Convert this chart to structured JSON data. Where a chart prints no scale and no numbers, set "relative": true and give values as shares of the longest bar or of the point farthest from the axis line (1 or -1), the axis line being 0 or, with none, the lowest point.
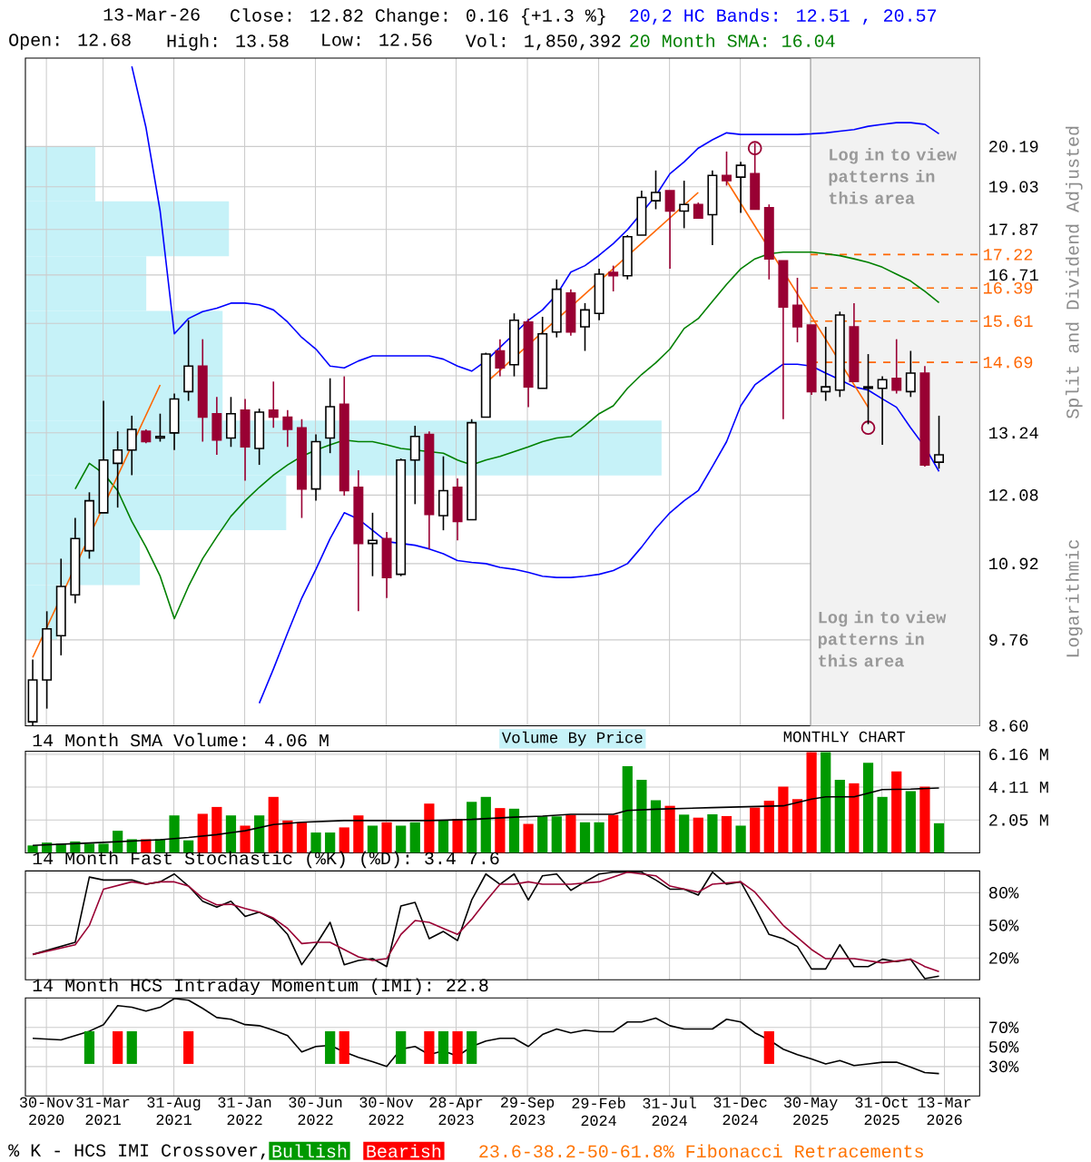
{
  "chart_data": [
    {
      "type": "candlestick",
      "x": [
        "2020-11",
        "2020-12",
        "2021-01",
        "2021-02",
        "2021-03",
        "2021-04",
        "2021-05",
        "2021-06",
        "2021-07",
        "2021-08",
        "2021-09",
        "2021-10",
        "2021-11",
        "2021-12",
        "2022-01",
        "2022-02",
        "2022-03",
        "2022-04",
        "2022-05",
        "2022-06",
        "2022-07",
        "2022-08",
        "2022-09",
        "2022-10",
        "2022-11",
        "2022-12",
        "2023-01",
        "2023-02",
        "2023-03",
        "2023-04",
        "2023-05",
        "2023-06",
        "2023-07",
        "2023-08",
        "2023-09",
        "2023-10",
        "2023-11",
        "2023-12",
        "2024-01",
        "2024-02",
        "2024-03",
        "2024-04",
        "2024-05",
        "2024-06",
        "2024-07",
        "2024-08",
        "2024-09",
        "2024-10",
        "2024-11",
        "2024-12",
        "2025-01",
        "2025-02",
        "2025-03",
        "2025-04",
        "2025-05",
        "2025-06",
        "2025-07",
        "2025-08",
        "2025-09",
        "2025-10",
        "2025-11",
        "2025-12",
        "2026-01",
        "2026-02",
        "2026-03"
      ],
      "ohlc": [
        [
          8.65,
          9.48,
          8.6,
          9.2
        ],
        [
          9.2,
          10.18,
          8.82,
          9.92
        ],
        [
          9.82,
          11.0,
          9.54,
          10.56
        ],
        [
          10.43,
          11.68,
          10.3,
          11.33
        ],
        [
          11.13,
          12.13,
          11.0,
          11.98
        ],
        [
          11.77,
          13.88,
          11.77,
          12.72
        ],
        [
          12.66,
          13.27,
          11.86,
          12.91
        ],
        [
          12.91,
          13.58,
          12.44,
          13.31
        ],
        [
          13.27,
          13.31,
          13.04,
          13.07
        ],
        [
          13.14,
          13.62,
          13.07,
          13.17
        ],
        [
          13.24,
          14.03,
          12.91,
          13.92
        ],
        [
          14.07,
          15.63,
          13.88,
          14.61
        ],
        [
          14.61,
          15.2,
          13.07,
          13.55
        ],
        [
          13.62,
          13.96,
          12.82,
          13.1
        ],
        [
          13.14,
          13.96,
          12.97,
          13.62
        ],
        [
          13.69,
          13.92,
          12.34,
          12.97
        ],
        [
          12.94,
          13.72,
          12.63,
          13.65
        ],
        [
          13.69,
          14.28,
          13.34,
          13.55
        ],
        [
          13.55,
          13.69,
          12.97,
          13.31
        ],
        [
          13.34,
          13.51,
          11.68,
          12.19
        ],
        [
          12.19,
          13.21,
          11.98,
          13.07
        ],
        [
          13.14,
          14.35,
          12.85,
          13.76
        ],
        [
          13.81,
          14.39,
          12.07,
          12.16
        ],
        [
          12.22,
          12.53,
          10.18,
          11.25
        ],
        [
          11.25,
          11.77,
          10.72,
          11.3
        ],
        [
          11.33,
          11.44,
          10.38,
          10.7
        ],
        [
          10.75,
          12.75,
          10.72,
          12.72
        ],
        [
          12.72,
          13.38,
          11.92,
          13.17
        ],
        [
          13.21,
          13.27,
          11.16,
          11.74
        ],
        [
          11.72,
          12.79,
          11.47,
          12.16
        ],
        [
          12.22,
          12.38,
          11.3,
          11.62
        ],
        [
          11.65,
          13.51,
          11.65,
          13.44
        ],
        [
          13.55,
          14.9,
          13.55,
          14.87
        ],
        [
          14.94,
          15.2,
          14.39,
          14.57
        ],
        [
          14.64,
          15.79,
          14.39,
          15.63
        ],
        [
          15.59,
          15.67,
          13.75,
          14.17
        ],
        [
          14.14,
          15.71,
          14.14,
          15.32
        ],
        [
          15.36,
          16.6,
          15.24,
          16.36
        ],
        [
          16.27,
          16.36,
          15.28,
          15.36
        ],
        [
          15.48,
          16.03,
          14.94,
          15.87
        ],
        [
          15.79,
          16.86,
          15.63,
          16.73
        ],
        [
          16.77,
          16.94,
          16.31,
          16.69
        ],
        [
          16.69,
          17.72,
          16.6,
          17.68
        ],
        [
          17.72,
          18.92,
          17.72,
          18.73
        ],
        [
          18.64,
          19.49,
          18.41,
          18.87
        ],
        [
          18.92,
          18.92,
          16.86,
          18.36
        ],
        [
          18.36,
          19.2,
          17.9,
          18.54
        ],
        [
          18.54,
          18.59,
          18.17,
          18.17
        ],
        [
          18.26,
          19.49,
          17.46,
          19.35
        ],
        [
          19.35,
          20.04,
          19.06,
          19.2
        ],
        [
          19.3,
          19.74,
          18.31,
          19.64
        ],
        [
          19.4,
          20.29,
          18.41,
          18.41
        ],
        [
          18.45,
          18.54,
          16.6,
          17.11
        ],
        [
          17.06,
          17.06,
          13.51,
          15.94
        ],
        [
          15.98,
          16.64,
          15.13,
          15.48
        ],
        [
          15.52,
          15.52,
          14.0,
          14.07
        ],
        [
          14.07,
          15.48,
          13.88,
          14.17
        ],
        [
          14.1,
          15.83,
          13.96,
          15.75
        ],
        [
          15.48,
          16.03,
          14.28,
          14.28
        ],
        [
          14.14,
          14.87,
          13.41,
          14.17
        ],
        [
          14.14,
          14.39,
          13.01,
          14.32
        ],
        [
          14.35,
          15.2,
          14.03,
          14.1
        ],
        [
          14.07,
          14.94,
          13.96,
          14.46
        ],
        [
          14.46,
          14.61,
          12.6,
          12.63
        ],
        [
          12.68,
          13.58,
          12.56,
          12.82
        ]
      ],
      "colors": [
        "#ffffff",
        "#ffffff",
        "#ffffff",
        "#ffffff",
        "#ffffff",
        "#ffffff",
        "#ffffff",
        "#ffffff",
        "#990033",
        "#ffffff",
        "#ffffff",
        "#ffffff",
        "#990033",
        "#990033",
        "#ffffff",
        "#990033",
        "#ffffff",
        "#990033",
        "#990033",
        "#990033",
        "#ffffff",
        "#ffffff",
        "#990033",
        "#990033",
        "#ffffff",
        "#990033",
        "#ffffff",
        "#ffffff",
        "#990033",
        "#ffffff",
        "#990033",
        "#ffffff",
        "#ffffff",
        "#990033",
        "#ffffff",
        "#990033",
        "#ffffff",
        "#ffffff",
        "#990033",
        "#ffffff",
        "#ffffff",
        "#990033",
        "#ffffff",
        "#ffffff",
        "#ffffff",
        "#990033",
        "#ffffff",
        "#990033",
        "#ffffff",
        "#990033",
        "#ffffff",
        "#990033",
        "#990033",
        "#990033",
        "#990033",
        "#990033",
        "#ffffff",
        "#ffffff",
        "#990033",
        "#ffffff",
        "#ffffff",
        "#990033",
        "#ffffff",
        "#990033",
        "#ffffff"
      ],
      "series": [
        {
          "type": "line",
          "name": "20,2 HC Bands: 12.51 , 20.57",
          "color": "#0000ff",
          "values": [
            null,
            null,
            null,
            null,
            null,
            null,
            null,
            22.72,
            20.76,
            18.36,
            15.32,
            15.67,
            15.83,
            15.91,
            16.03,
            16.03,
            15.99,
            15.87,
            15.59,
            15.24,
            14.98,
            14.61,
            14.57,
            14.72,
            14.83,
            14.83,
            14.83,
            14.83,
            14.83,
            14.76,
            14.61,
            14.5,
            14.72,
            15.02,
            15.32,
            15.63,
            15.87,
            16.23,
            16.78,
            16.94,
            17.2,
            17.5,
            17.86,
            18.31,
            18.78,
            19.4,
            19.74,
            20.14,
            20.39,
            20.6,
            20.55,
            20.55,
            20.55,
            20.55,
            20.55,
            20.57,
            20.6,
            20.65,
            20.7,
            20.8,
            20.86,
            20.91,
            20.91,
            20.86,
            20.57
          ]
        },
        {
          "type": "line",
          "color": "#0000ff",
          "values": [
            null,
            null,
            null,
            null,
            null,
            null,
            null,
            null,
            null,
            null,
            null,
            null,
            null,
            null,
            null,
            null,
            8.89,
            9.35,
            9.86,
            10.38,
            10.83,
            11.33,
            11.77,
            11.66,
            11.47,
            11.28,
            11.25,
            11.22,
            11.16,
            11.08,
            10.97,
            10.94,
            10.92,
            10.86,
            10.83,
            10.78,
            10.72,
            10.7,
            10.7,
            10.72,
            10.75,
            10.81,
            10.92,
            11.19,
            11.5,
            11.77,
            11.98,
            12.16,
            12.6,
            13.07,
            13.78,
            14.21,
            14.43,
            14.65,
            14.65,
            14.61,
            14.46,
            14.32,
            14.17,
            14.1,
            13.92,
            13.75,
            13.34,
            12.97,
            12.51
          ]
        },
        {
          "type": "line",
          "name": "20 Month SMA: 16.04",
          "color": "#008000",
          "values": [
            null,
            null,
            null,
            12.19,
            12.66,
            12.47,
            12.16,
            11.62,
            11.19,
            10.72,
            10.07,
            10.56,
            11.0,
            11.36,
            11.71,
            11.98,
            12.22,
            12.44,
            12.63,
            12.79,
            12.91,
            13.01,
            13.1,
            13.07,
            13.07,
            13.01,
            12.94,
            12.91,
            12.88,
            12.85,
            12.72,
            12.63,
            12.72,
            12.79,
            12.88,
            12.97,
            13.07,
            13.14,
            13.17,
            13.38,
            13.62,
            13.78,
            14.14,
            14.43,
            14.68,
            14.98,
            15.44,
            15.67,
            16.07,
            16.48,
            16.86,
            17.11,
            17.24,
            17.28,
            17.28,
            17.28,
            17.24,
            17.19,
            17.11,
            17.02,
            16.9,
            16.73,
            16.56,
            16.31,
            16.04
          ]
        },
        {
          "type": "line",
          "color": "#ff6600",
          "x": [
            "2020-11",
            "2021-08"
          ],
          "values": [
            9.51,
            14.21
          ]
        },
        {
          "type": "line",
          "color": "#ff6600",
          "x": [
            "2023-07",
            "2024-10"
          ],
          "values": [
            14.25,
            18.87
          ]
        },
        {
          "type": "line",
          "color": "#ff6600",
          "x": [
            "2024-12",
            "2025-10"
          ],
          "values": [
            19.2,
            13.75
          ]
        },
        {
          "type": "scatter",
          "marker": "circle",
          "color": "#990033",
          "x": [
            "2025-02",
            "2025-10"
          ],
          "values": [
            20.14,
            13.34
          ]
        }
      ],
      "xlim": [
        "2020-10-16",
        "2026-05-28"
      ],
      "xticks": [
        "2020-11-30",
        "2021-03-31",
        "2021-08-31",
        "2022-01-31",
        "2022-06-30",
        "2022-11-30",
        "2023-04-28",
        "2023-09-29",
        "2024-02-29",
        "2024-07-31",
        "2024-12-31",
        "2025-05-30",
        "2025-10-31",
        "2026-03-13"
      ],
      "ylim": [
        8.6,
        23.0
      ],
      "yticks": [
        {
          "value": 8.6,
          "label": "8.60"
        },
        9.76,
        10.92,
        12.08,
        13.24,
        {
          "value": 14.4,
          "label": null
        },
        {
          "value": 15.56,
          "label": null
        },
        16.71,
        17.87,
        19.03,
        20.19
      ],
      "log": true,
      "grid": true,
      "tick_labels": "y",
      "legend": "top right",
      "ylabel": "Split and Dividend Adjusted",
      "ref_lines": [
        {
          "axis": "y",
          "value": 17.22,
          "label": "17.22",
          "color": "#ff6600",
          "line_style": "dashed"
        },
        {
          "axis": "y",
          "value": 16.39,
          "label": "16.39",
          "color": "#ff6600",
          "line_style": "dashed"
        },
        {
          "axis": "y",
          "value": 15.61,
          "label": "15.61",
          "color": "#ff6600",
          "line_style": "dashed"
        },
        {
          "axis": "y",
          "value": 14.69,
          "label": "14.69",
          "color": "#ff6600",
          "line_style": "dashed"
        }
      ],
      "bands": [
        {
          "axis": "x",
          "from": "2025-05-30",
          "to": "2026-05-28",
          "color": "#f2f2f2",
          "label": "Log in to view patterns in this area"
        }
      ],
      "annotations": [
        "13-Mar-26",
        "Close: 12.82",
        "Change: 0.16 {+1.3 %}",
        "Open: 12.68",
        "High: 13.58",
        "Low: 12.56",
        "Vol: 1,850,392",
        "Log in to view patterns in this area",
        "Logarithmic",
        "MONTHLY CHART",
        "23.6-38.2-50-61.8% Fibonacci Retracements"
      ]
    },
    {
      "type": "bar",
      "orientation": "horizontal",
      "relative": true,
      "title": "Volume By Price",
      "color": "#c6f2f8",
      "categories": [
        null,
        null,
        null,
        null,
        null,
        null,
        null,
        null,
        null
      ],
      "values": [
        0.11,
        0.32,
        0.19,
        0.31,
        0.31,
        1,
        0.41,
        0.18,
        0.05
      ]
    },
    {
      "type": "bar",
      "title": "14 Month SMA Volume: 4.06 M",
      "x": [
        "2020-11",
        "2020-12",
        "2021-01",
        "2021-02",
        "2021-03",
        "2021-04",
        "2021-05",
        "2021-06",
        "2021-07",
        "2021-08",
        "2021-09",
        "2021-10",
        "2021-11",
        "2021-12",
        "2022-01",
        "2022-02",
        "2022-03",
        "2022-04",
        "2022-05",
        "2022-06",
        "2022-07",
        "2022-08",
        "2022-09",
        "2022-10",
        "2022-11",
        "2022-12",
        "2023-01",
        "2023-02",
        "2023-03",
        "2023-04",
        "2023-05",
        "2023-06",
        "2023-07",
        "2023-08",
        "2023-09",
        "2023-10",
        "2023-11",
        "2023-12",
        "2024-01",
        "2024-02",
        "2024-03",
        "2024-04",
        "2024-05",
        "2024-06",
        "2024-07",
        "2024-08",
        "2024-09",
        "2024-10",
        "2024-11",
        "2024-12",
        "2025-01",
        "2025-02",
        "2025-03",
        "2025-04",
        "2025-05",
        "2025-06",
        "2025-07",
        "2025-08",
        "2025-09",
        "2025-10",
        "2025-11",
        "2025-12",
        "2026-01",
        "2026-02",
        "2026-03"
      ],
      "series": [
        {
          "type": "bar",
          "values": [
            0.46,
            0.64,
            0.57,
            0.71,
            0.57,
            0.57,
            1.38,
            0.85,
            0.85,
            0.85,
            2.34,
            0.78,
            2.44,
            2.87,
            2.34,
            1.7,
            2.34,
            3.5,
            2.02,
            1.91,
            1.27,
            1.27,
            1.59,
            2.34,
            1.7,
            1.91,
            1.7,
            1.91,
            3.08,
            2.02,
            2.12,
            3.19,
            3.5,
            2.8,
            2.76,
            1.81,
            2.28,
            2.28,
            2.37,
            1.91,
            1.91,
            2.37,
            5.42,
            4.57,
            3.29,
            2.94,
            2.39,
            2.2,
            2.41,
            2.3,
            1.7,
            2.83,
            3.26,
            4.14,
            3.36,
            6.3,
            6.3,
            4.57,
            4.35,
            5.63,
            3.5,
            5.1,
            3.86,
            4.14,
            1.85
          ],
          "colors": [
            "#009900",
            "#009900",
            "#009900",
            "#009900",
            "#009900",
            "#009900",
            "#009900",
            "#009900",
            "#ff0000",
            "#009900",
            "#009900",
            "#009900",
            "#ff0000",
            "#ff0000",
            "#009900",
            "#ff0000",
            "#009900",
            "#ff0000",
            "#ff0000",
            "#ff0000",
            "#009900",
            "#009900",
            "#ff0000",
            "#ff0000",
            "#009900",
            "#ff0000",
            "#009900",
            "#009900",
            "#ff0000",
            "#009900",
            "#ff0000",
            "#009900",
            "#009900",
            "#ff0000",
            "#009900",
            "#ff0000",
            "#009900",
            "#009900",
            "#ff0000",
            "#009900",
            "#009900",
            "#ff0000",
            "#009900",
            "#009900",
            "#009900",
            "#ff0000",
            "#009900",
            "#ff0000",
            "#009900",
            "#ff0000",
            "#009900",
            "#ff0000",
            "#ff0000",
            "#ff0000",
            "#ff0000",
            "#ff0000",
            "#009900",
            "#009900",
            "#ff0000",
            "#009900",
            "#009900",
            "#ff0000",
            "#009900",
            "#ff0000",
            "#009900"
          ]
        },
        {
          "type": "line",
          "color": "#000000",
          "x": [
            "2020-11",
            "2021-03",
            "2021-08",
            "2021-10",
            "2021-12",
            "2022-02",
            "2022-04",
            "2022-06",
            "2022-09",
            "2022-12",
            "2023-03",
            "2023-06",
            "2023-09",
            "2023-11",
            "2024-01",
            "2024-04",
            "2024-05",
            "2024-07",
            "2024-11",
            "2025-04",
            "2025-06",
            "2025-07",
            "2025-09",
            "2025-11",
            "2026-01",
            "2026-03"
          ],
          "values": [
            0.46,
            0.61,
            0.82,
            0.96,
            1.14,
            1.38,
            1.77,
            1.91,
            2.02,
            2.02,
            2.02,
            2.09,
            2.23,
            2.3,
            2.41,
            2.41,
            2.65,
            2.73,
            2.83,
            2.94,
            3.36,
            3.5,
            3.5,
            3.96,
            3.99,
            4.06
          ]
        }
      ],
      "xlim": [
        "2020-10-16",
        "2026-05-28"
      ],
      "xticks": [
        "2020-11-30",
        "2021-03-31",
        "2021-08-31",
        "2022-01-31",
        "2022-06-30",
        "2022-11-30",
        "2023-04-28",
        "2023-09-29",
        "2024-02-29",
        "2024-07-31",
        "2024-12-31",
        "2025-05-30",
        "2025-10-31",
        "2026-03-13"
      ],
      "ylim": [
        0,
        6.36
      ],
      "yticks": [
        {
          "value": 2.05,
          "label": "2.05 M"
        },
        {
          "value": 4.11,
          "label": "4.11 M"
        },
        {
          "value": 6.16,
          "label": "6.16 M"
        }
      ],
      "grid": true,
      "tick_labels": "y"
    },
    {
      "type": "line",
      "title": "14 Month Fast Stochastic (%K) (%D): 3.4   7.6",
      "series": [
        {
          "color": "#000000",
          "x": [
            "2020-11",
            "2021-02",
            "2021-03",
            "2021-04",
            "2021-05",
            "2021-06",
            "2021-07",
            "2021-08",
            "2021-09",
            "2021-10",
            "2021-11",
            "2021-12",
            "2022-01",
            "2022-02",
            "2022-03",
            "2022-04",
            "2022-05",
            "2022-06",
            "2022-07",
            "2022-08",
            "2022-09",
            "2022-10",
            "2022-11",
            "2022-12",
            "2023-01",
            "2023-02",
            "2023-03",
            "2023-04",
            "2023-05",
            "2023-06",
            "2023-07",
            "2023-08",
            "2023-09",
            "2023-10",
            "2023-11",
            "2023-12",
            "2024-01",
            "2024-02",
            "2024-03",
            "2024-04",
            "2024-05",
            "2024-06",
            "2024-07",
            "2024-08",
            "2024-09",
            "2024-10",
            "2024-11",
            "2024-12",
            "2025-01",
            "2025-02",
            "2025-03",
            "2025-04",
            "2025-05",
            "2025-06",
            "2025-07",
            "2025-08",
            "2025-09",
            "2025-10",
            "2025-11",
            "2025-12",
            "2026-01",
            "2026-02",
            "2026-03"
          ],
          "values": [
            23.3,
            34.4,
            94.4,
            91.7,
            91.7,
            91.7,
            87.8,
            90,
            97.2,
            86.1,
            72.2,
            66.7,
            72.2,
            58.3,
            62.2,
            55.6,
            41.7,
            13.9,
            32.2,
            52.8,
            13.9,
            17.8,
            19.4,
            12.2,
            67.8,
            71.1,
            37.8,
            44.4,
            36.1,
            73.3,
            97.2,
            87.8,
            97.2,
            73.3,
            95.6,
            97.2,
            82.2,
            90,
            97.2,
            98.9,
            98.9,
            98.9,
            91.7,
            83.3,
            83.3,
            77.8,
            98.9,
            87.8,
            90,
            66.7,
            41.7,
            37.8,
            30.6,
            10,
            10,
            32.2,
            12.2,
            12.2,
            18.9,
            16.7,
            18.9,
            1.1,
            3.4
          ]
        },
        {
          "color": "#990033",
          "x": [
            "2020-11",
            "2021-02",
            "2021-03",
            "2021-04",
            "2021-06",
            "2021-07",
            "2021-08",
            "2021-09",
            "2021-10",
            "2021-11",
            "2021-12",
            "2022-01",
            "2022-02",
            "2022-03",
            "2022-04",
            "2022-05",
            "2022-06",
            "2022-07",
            "2022-08",
            "2022-09",
            "2022-10",
            "2022-11",
            "2022-12",
            "2023-01",
            "2023-02",
            "2023-03",
            "2023-04",
            "2023-05",
            "2023-06",
            "2023-07",
            "2023-08",
            "2023-09",
            "2023-10",
            "2023-11",
            "2024-01",
            "2024-03",
            "2024-05",
            "2024-07",
            "2024-08",
            "2024-10",
            "2024-11",
            "2025-01",
            "2025-02",
            "2025-04",
            "2025-06",
            "2025-07",
            "2025-09",
            "2025-11",
            "2026-01",
            "2026-02",
            "2026-03"
          ],
          "values": [
            23.3,
            32.2,
            50,
            83.3,
            90,
            87.8,
            90,
            90,
            86.1,
            75,
            68.9,
            69.4,
            65.6,
            62.2,
            56.7,
            47.2,
            33.3,
            34.4,
            34.4,
            27.8,
            21.1,
            17.8,
            19.4,
            41.7,
            54.4,
            52.8,
            47.2,
            41.7,
            55.6,
            72.2,
            87.8,
            87.8,
            90,
            87.8,
            87.8,
            90,
            98.9,
            95.6,
            86.1,
            80.6,
            87.8,
            90,
            80.6,
            50,
            27.8,
            19.4,
            19.4,
            15.6,
            18.9,
            12.2,
            7.6
          ]
        }
      ],
      "xlim": [
        "2020-10-16",
        "2026-05-28"
      ],
      "xticks": [
        "2020-11-30",
        "2021-03-31",
        "2021-08-31",
        "2022-01-31",
        "2022-06-30",
        "2022-11-30",
        "2023-04-28",
        "2023-09-29",
        "2024-02-29",
        "2024-07-31",
        "2024-12-31",
        "2025-05-30",
        "2025-10-31",
        "2026-03-13"
      ],
      "ylim": [
        0,
        100
      ],
      "yticks": [
        {
          "value": 20,
          "label": "20%"
        },
        {
          "value": 50,
          "label": "50%"
        },
        {
          "value": 80,
          "label": "80%"
        }
      ],
      "grid": true,
      "tick_labels": "y"
    },
    {
      "type": "line",
      "title": "14 Month HCS Intraday Momentum (IMI): 22.8",
      "legend": "bottom",
      "legend_title": "% K - HCS IMI Crossover,",
      "series": [
        {
          "color": "#000000",
          "x": [
            "2020-11",
            "2021-01",
            "2021-03",
            "2021-04",
            "2021-05",
            "2021-06",
            "2021-07",
            "2021-08",
            "2021-09",
            "2021-10",
            "2021-11",
            "2021-12",
            "2022-01",
            "2022-02",
            "2022-03",
            "2022-04",
            "2022-05",
            "2022-06",
            "2022-07",
            "2022-08",
            "2022-09",
            "2022-10",
            "2022-11",
            "2022-12",
            "2023-01",
            "2023-02",
            "2023-03",
            "2023-04",
            "2023-05",
            "2023-06",
            "2023-07",
            "2023-08",
            "2023-09",
            "2023-10",
            "2023-11",
            "2023-12",
            "2024-01",
            "2024-02",
            "2024-03",
            "2024-04",
            "2024-05",
            "2024-06",
            "2024-07",
            "2024-08",
            "2024-09",
            "2024-10",
            "2024-11",
            "2024-12",
            "2025-01",
            "2025-02",
            "2025-03",
            "2025-04",
            "2025-05",
            "2025-06",
            "2025-07",
            "2025-08",
            "2025-09",
            "2025-10",
            "2025-11",
            "2025-12",
            "2026-01",
            "2026-02",
            "2026-03"
          ],
          "values": [
            58.8,
            57.2,
            66.1,
            72.8,
            92.2,
            90.5,
            86.7,
            90.5,
            99.4,
            97.7,
            89.4,
            80,
            78.3,
            72.8,
            71.7,
            67.2,
            61.7,
            45,
            50.5,
            51.7,
            45,
            39.4,
            35,
            30,
            47.7,
            50.5,
            42.2,
            46.1,
            40.5,
            50.5,
            56.1,
            58.8,
            58.8,
            50.5,
            62.7,
            68.3,
            64.4,
            67.2,
            65.5,
            65.5,
            75.5,
            75.5,
            79.4,
            71.7,
            68.3,
            68.3,
            68.3,
            78.3,
            75.5,
            64.4,
            57.2,
            47.7,
            42.2,
            37.7,
            32.7,
            36.1,
            31.1,
            32.7,
            34.4,
            34.4,
            29.4,
            23.9,
            22.8
          ]
        },
        {
          "type": "bar",
          "name": "Bullish",
          "color": "#009900",
          "x": [
            "2021-03",
            "2021-06",
            "2022-08",
            "2023-01",
            "2023-04",
            "2023-06"
          ],
          "base": [
            32.7,
            32.7,
            32.7,
            32.7,
            32.7,
            32.7
          ],
          "values": [
            33.3,
            33.3,
            33.3,
            33.3,
            33.3,
            33.3
          ]
        },
        {
          "type": "bar",
          "name": "Bearish",
          "color": "#ff0000",
          "x": [
            "2021-05",
            "2021-10",
            "2022-09",
            "2023-03",
            "2023-05",
            "2025-03"
          ],
          "base": [
            32.7,
            32.7,
            32.7,
            32.7,
            32.7,
            32.7
          ],
          "values": [
            33.3,
            33.3,
            33.3,
            33.3,
            33.3,
            33.3
          ]
        }
      ],
      "xlim": [
        "2020-10-16",
        "2026-05-28"
      ],
      "xticks": [
        {
          "value": "2020-11-30",
          "label": "30-Nov 2020"
        },
        {
          "value": "2021-03-31",
          "label": "31-Mar 2021"
        },
        {
          "value": "2021-08-31",
          "label": "31-Aug 2021"
        },
        {
          "value": "2022-01-31",
          "label": "31-Jan 2022"
        },
        {
          "value": "2022-06-30",
          "label": "30-Jun 2022"
        },
        {
          "value": "2022-11-30",
          "label": "30-Nov 2022"
        },
        {
          "value": "2023-04-28",
          "label": "28-Apr 2023"
        },
        {
          "value": "2023-09-29",
          "label": "29-Sep 2023"
        },
        {
          "value": "2024-02-29",
          "label": "29-Feb 2024"
        },
        {
          "value": "2024-07-31",
          "label": "31-Jul 2024"
        },
        {
          "value": "2024-12-31",
          "label": "31-Dec 2024"
        },
        {
          "value": "2025-05-30",
          "label": "30-May 2025"
        },
        {
          "value": "2025-10-31",
          "label": "31-Oct 2025"
        },
        {
          "value": "2026-03-13",
          "label": "13-Mar 2026"
        }
      ],
      "ylim": [
        0,
        100
      ],
      "yticks": [
        {
          "value": 30,
          "label": "30%"
        },
        {
          "value": 50,
          "label": "50%"
        },
        {
          "value": 70,
          "label": "70%"
        }
      ],
      "grid": true
    }
  ]
}
